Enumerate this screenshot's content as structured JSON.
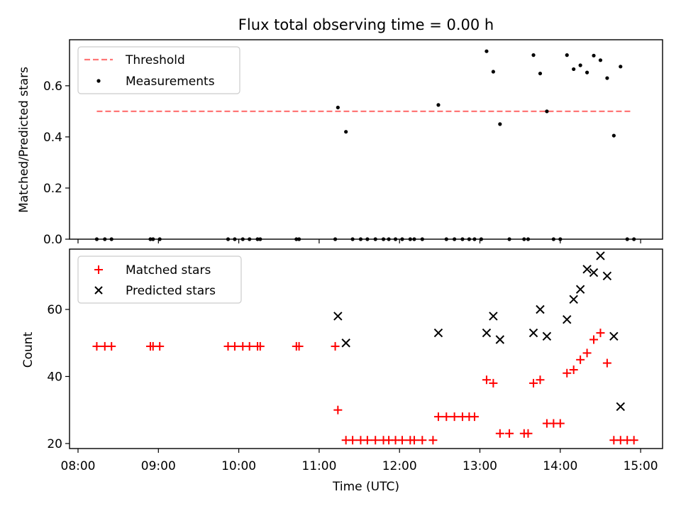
{
  "chart_data": [
    {
      "type": "scatter",
      "title": "Flux total observing time = 0.00 h",
      "xlabel": "",
      "ylabel": "Matched/Predicted stars",
      "xlim": [
        "08:00",
        "15:00"
      ],
      "ylim": [
        0,
        0.78
      ],
      "x_ticks": [
        "08:00",
        "09:00",
        "10:00",
        "11:00",
        "12:00",
        "13:00",
        "14:00",
        "15:00"
      ],
      "y_ticks": [
        "0.0",
        "0.2",
        "0.4",
        "0.6"
      ],
      "y_tick_values": [
        0,
        0.2,
        0.4,
        0.6
      ],
      "legend_position": "upper-left",
      "threshold": {
        "name": "Threshold",
        "y": 0.5,
        "x_start": "08:14",
        "x_end": "14:54",
        "color": "#ff7777",
        "style": "dashed"
      },
      "series": [
        {
          "name": "Measurements",
          "marker": "dot",
          "color": "#000000",
          "points": [
            [
              "08:14",
              0
            ],
            [
              "08:20",
              0
            ],
            [
              "08:25",
              0
            ],
            [
              "08:54",
              0
            ],
            [
              "08:56",
              0
            ],
            [
              "09:01",
              0
            ],
            [
              "09:52",
              0
            ],
            [
              "09:57",
              0
            ],
            [
              "10:03",
              0
            ],
            [
              "10:08",
              0
            ],
            [
              "10:14",
              0
            ],
            [
              "10:16",
              0
            ],
            [
              "10:43",
              0
            ],
            [
              "10:45",
              0
            ],
            [
              "11:12",
              0
            ],
            [
              "11:14",
              0.515
            ],
            [
              "11:20",
              0.42
            ],
            [
              "11:25",
              0
            ],
            [
              "11:31",
              0
            ],
            [
              "11:36",
              0
            ],
            [
              "11:42",
              0
            ],
            [
              "11:48",
              0
            ],
            [
              "11:52",
              0
            ],
            [
              "11:57",
              0
            ],
            [
              "12:02",
              0
            ],
            [
              "12:08",
              0
            ],
            [
              "12:11",
              0
            ],
            [
              "12:17",
              0
            ],
            [
              "12:29",
              0.525
            ],
            [
              "12:35",
              0
            ],
            [
              "12:41",
              0
            ],
            [
              "12:47",
              0
            ],
            [
              "12:52",
              0
            ],
            [
              "12:56",
              0
            ],
            [
              "13:01",
              0
            ],
            [
              "13:05",
              0.735
            ],
            [
              "13:10",
              0.655
            ],
            [
              "13:15",
              0.45
            ],
            [
              "13:22",
              0
            ],
            [
              "13:33",
              0
            ],
            [
              "13:36",
              0
            ],
            [
              "13:40",
              0.72
            ],
            [
              "13:45",
              0.648
            ],
            [
              "13:50",
              0.5
            ],
            [
              "13:55",
              0
            ],
            [
              "14:00",
              0
            ],
            [
              "14:05",
              0.72
            ],
            [
              "14:10",
              0.665
            ],
            [
              "14:15",
              0.68
            ],
            [
              "14:20",
              0.652
            ],
            [
              "14:25",
              0.718
            ],
            [
              "14:30",
              0.7
            ],
            [
              "14:35",
              0.63
            ],
            [
              "14:40",
              0.405
            ],
            [
              "14:45",
              0.675
            ],
            [
              "14:50",
              0
            ],
            [
              "14:55",
              0
            ]
          ]
        }
      ]
    },
    {
      "type": "scatter",
      "title": "",
      "xlabel": "Time (UTC)",
      "ylabel": "Count",
      "xlim": [
        "08:00",
        "15:00"
      ],
      "ylim": [
        18.5,
        78
      ],
      "x_ticks": [
        "08:00",
        "09:00",
        "10:00",
        "11:00",
        "12:00",
        "13:00",
        "14:00",
        "15:00"
      ],
      "y_ticks": [
        "20",
        "40",
        "60"
      ],
      "y_tick_values": [
        20,
        40,
        60
      ],
      "legend_position": "upper-left",
      "series": [
        {
          "name": "Matched stars",
          "marker": "plus",
          "color": "#ff0000",
          "points": [
            [
              "08:14",
              49
            ],
            [
              "08:20",
              49
            ],
            [
              "08:25",
              49
            ],
            [
              "08:54",
              49
            ],
            [
              "08:56",
              49
            ],
            [
              "09:01",
              49
            ],
            [
              "09:52",
              49
            ],
            [
              "09:57",
              49
            ],
            [
              "10:03",
              49
            ],
            [
              "10:08",
              49
            ],
            [
              "10:14",
              49
            ],
            [
              "10:16",
              49
            ],
            [
              "10:43",
              49
            ],
            [
              "10:45",
              49
            ],
            [
              "11:12",
              49
            ],
            [
              "11:14",
              30
            ],
            [
              "11:20",
              21
            ],
            [
              "11:25",
              21
            ],
            [
              "11:31",
              21
            ],
            [
              "11:36",
              21
            ],
            [
              "11:42",
              21
            ],
            [
              "11:48",
              21
            ],
            [
              "11:52",
              21
            ],
            [
              "11:57",
              21
            ],
            [
              "12:02",
              21
            ],
            [
              "12:08",
              21
            ],
            [
              "12:11",
              21
            ],
            [
              "12:17",
              21
            ],
            [
              "12:25",
              21
            ],
            [
              "12:29",
              28
            ],
            [
              "12:35",
              28
            ],
            [
              "12:41",
              28
            ],
            [
              "12:47",
              28
            ],
            [
              "12:52",
              28
            ],
            [
              "12:56",
              28
            ],
            [
              "13:05",
              39
            ],
            [
              "13:10",
              38
            ],
            [
              "13:15",
              23
            ],
            [
              "13:22",
              23
            ],
            [
              "13:33",
              23
            ],
            [
              "13:36",
              23
            ],
            [
              "13:40",
              38
            ],
            [
              "13:45",
              39
            ],
            [
              "13:50",
              26
            ],
            [
              "13:55",
              26
            ],
            [
              "14:00",
              26
            ],
            [
              "14:05",
              41
            ],
            [
              "14:10",
              42
            ],
            [
              "14:15",
              45
            ],
            [
              "14:20",
              47
            ],
            [
              "14:25",
              51
            ],
            [
              "14:30",
              53
            ],
            [
              "14:35",
              44
            ],
            [
              "14:40",
              21
            ],
            [
              "14:45",
              21
            ],
            [
              "14:50",
              21
            ],
            [
              "14:55",
              21
            ]
          ]
        },
        {
          "name": "Predicted stars",
          "marker": "x",
          "color": "#000000",
          "points": [
            [
              "11:14",
              58
            ],
            [
              "11:20",
              50
            ],
            [
              "12:29",
              53
            ],
            [
              "13:05",
              53
            ],
            [
              "13:10",
              58
            ],
            [
              "13:15",
              51
            ],
            [
              "13:40",
              53
            ],
            [
              "13:45",
              60
            ],
            [
              "13:50",
              52
            ],
            [
              "14:05",
              57
            ],
            [
              "14:10",
              63
            ],
            [
              "14:15",
              66
            ],
            [
              "14:20",
              72
            ],
            [
              "14:25",
              71
            ],
            [
              "14:30",
              76
            ],
            [
              "14:35",
              70
            ],
            [
              "14:40",
              52
            ],
            [
              "14:45",
              31
            ]
          ]
        }
      ]
    }
  ]
}
